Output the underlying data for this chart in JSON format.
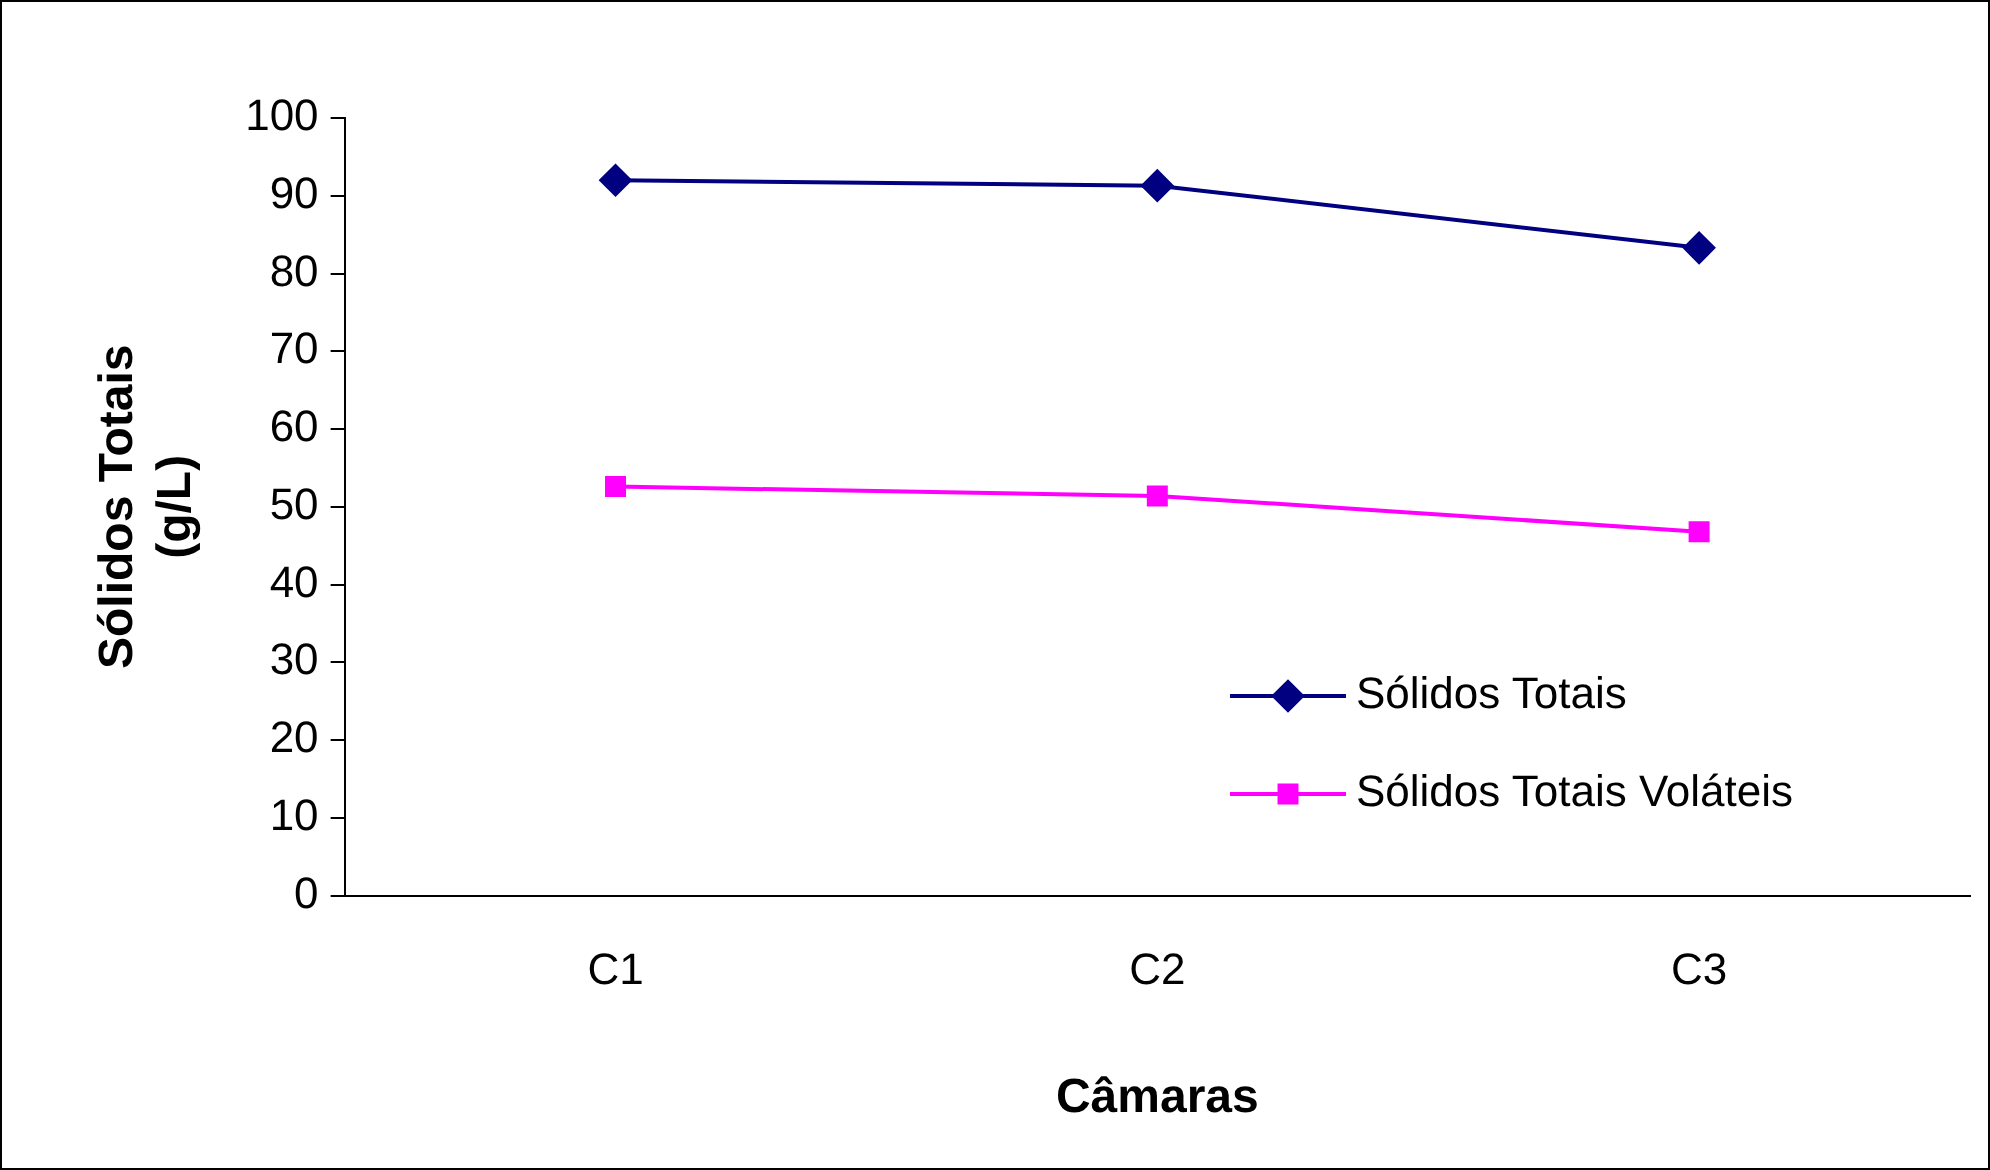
{
  "chart_data": {
    "type": "line",
    "xlabel": "Câmaras",
    "ylabel": "Sólidos Totais (g/L)",
    "categories": [
      "C1",
      "C2",
      "C3"
    ],
    "series": [
      {
        "name": "Sólidos Totais",
        "color": "#000080",
        "marker": "diamond",
        "values": [
          92.0,
          91.3,
          83.3
        ]
      },
      {
        "name": "Sólidos Totais Voláteis",
        "color": "#ff00ff",
        "marker": "square",
        "values": [
          52.6,
          51.4,
          46.8
        ]
      }
    ],
    "ylim": [
      0,
      100
    ],
    "yticks": [
      0,
      10,
      20,
      30,
      40,
      50,
      60,
      70,
      80,
      90,
      100
    ],
    "grid": false,
    "legend": "right",
    "line_style": "solid"
  }
}
